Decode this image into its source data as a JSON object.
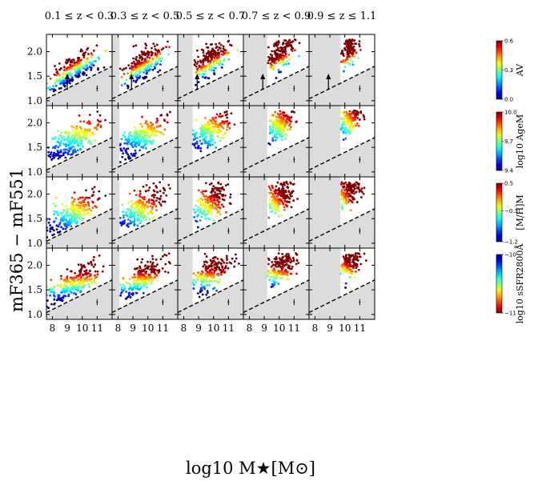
{
  "chart_data": {
    "type": "scatter",
    "title": "",
    "xlabel": "log10 M★[M⊙]",
    "ylabel": "mF365 − mF551",
    "xlim": [
      7.6,
      12.0
    ],
    "ylim": [
      0.9,
      2.35
    ],
    "x_ticks": [
      8,
      9,
      10,
      11
    ],
    "y_ticks": [
      1.0,
      1.5,
      2.0
    ],
    "x_tick_labels": [
      "8",
      "9",
      "10",
      "11"
    ],
    "y_tick_labels": [
      "1.0",
      "1.5",
      "2.0"
    ],
    "columns": [
      {
        "title": "0.1 ≤ z < 0.3",
        "zmin": 0.1,
        "zmax": 0.3,
        "mass_limit": 7.6,
        "arrow_x": 9.0
      },
      {
        "title": "0.3 ≤ z < 0.5",
        "zmin": 0.3,
        "zmax": 0.5,
        "mass_limit": 8.1,
        "arrow_x": 8.9
      },
      {
        "title": "0.5 ≤ z < 0.7",
        "zmin": 0.5,
        "zmax": 0.7,
        "mass_limit": 8.6,
        "arrow_x": 8.9
      },
      {
        "title": "0.7 ≤ z < 0.9",
        "zmin": 0.7,
        "zmax": 0.9,
        "mass_limit": 9.2,
        "arrow_x": 8.9
      },
      {
        "title": "0.9 ≤ z ≤ 1.1",
        "zmin": 0.9,
        "zmax": 1.1,
        "mass_limit": 9.7,
        "arrow_x": 8.9
      }
    ],
    "rows": [
      {
        "quantity": "A_V",
        "colorbar_label": "AV",
        "cmap": "jet",
        "range": [
          0.0,
          0.6
        ],
        "ticks": [
          0.0,
          0.3,
          0.6
        ],
        "tick_labels": [
          "0.0",
          "0.3",
          "0.6"
        ]
      },
      {
        "quantity": "log10 Age_M",
        "colorbar_label": "log10 AgeM",
        "cmap": "jet",
        "range": [
          9.4,
          10.0
        ],
        "ticks": [
          9.4,
          9.7,
          10.0
        ],
        "tick_labels": [
          "9.4",
          "9.7",
          "10.0"
        ]
      },
      {
        "quantity": "[M/H]_M",
        "colorbar_label": "[M/H]M",
        "cmap": "jet",
        "range": [
          -1.2,
          0.5
        ],
        "ticks": [
          -1.2,
          -0.3,
          0.5
        ],
        "tick_labels": [
          "−1.2",
          "−0.3",
          "0.5"
        ]
      },
      {
        "quantity": "log10 sSFR_2800Å",
        "colorbar_label": "log10 sSFR2800Å",
        "cmap": "jet_r",
        "range": [
          -11,
          -10
        ],
        "ticks": [
          -11,
          -10
        ],
        "tick_labels": [
          "−11",
          "−10"
        ]
      }
    ],
    "selection_line": {
      "slope": 0.15,
      "intercept_at_x8": 1.1,
      "style": "dashed"
    },
    "error_bar": {
      "x": 11.0,
      "y": 1.25,
      "xerr": 0.05,
      "yerr": 0.06
    },
    "arrow": {
      "y_start": 1.22,
      "y_end": 1.52,
      "rows": [
        0
      ]
    },
    "grey_region": "outside mass completeness / colour selection"
  }
}
